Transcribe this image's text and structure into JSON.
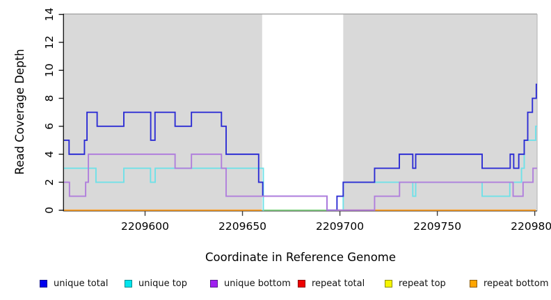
{
  "legend": {
    "items": [
      {
        "label": "unique total",
        "fill": "#0000EE",
        "border": "#00008B"
      },
      {
        "label": "unique top",
        "fill": "#00E5EE",
        "border": "#008B8B"
      },
      {
        "label": "unique bottom",
        "fill": "#A020F0",
        "border": "#551A8B"
      },
      {
        "label": "repeat total",
        "fill": "#EE0000",
        "border": "#8B0000"
      },
      {
        "label": "repeat top",
        "fill": "#F5F500",
        "border": "#8B8B00"
      },
      {
        "label": "repeat bottom",
        "fill": "#FFA500",
        "border": "#8B5A00"
      }
    ]
  },
  "chart_data": {
    "type": "line",
    "step": true,
    "title": "",
    "xlabel": "Coordinate in Reference Genome",
    "ylabel": "Read Coverage Depth",
    "xlim": [
      2209558.4,
      2209801.2
    ],
    "ylim": [
      0,
      14
    ],
    "xticks": [
      {
        "value": 2209600,
        "label": "2209600"
      },
      {
        "value": 2209650,
        "label": "2209650"
      },
      {
        "value": 2209700,
        "label": "2209700"
      },
      {
        "value": 2209750,
        "label": "2209750"
      },
      {
        "value": 2209800,
        "label": "2209800"
      }
    ],
    "yticks": [
      {
        "value": 0,
        "label": "0"
      },
      {
        "value": 2,
        "label": "2"
      },
      {
        "value": 4,
        "label": "4"
      },
      {
        "value": 6,
        "label": "6"
      },
      {
        "value": 8,
        "label": "8"
      },
      {
        "value": 10,
        "label": "10"
      },
      {
        "value": 12,
        "label": "12"
      },
      {
        "value": 14,
        "label": "14"
      }
    ],
    "grid": false,
    "legend_position": "bottom",
    "shading_color": "#d9d9d9",
    "shaded_regions": [
      {
        "from": 2209558.4,
        "to": 2209660.1
      },
      {
        "from": 2209701.7,
        "to": 2209801.0
      }
    ],
    "series": [
      {
        "name": "unique total",
        "color": "#2d2dd4",
        "segments": [
          {
            "steps": [
              [
                2209558.4,
                5
              ],
              [
                2209561.0,
                4
              ],
              [
                2209568.9,
                5
              ],
              [
                2209570.2,
                7
              ],
              [
                2209575.4,
                6
              ],
              [
                2209589.1,
                7
              ],
              [
                2209602.9,
                5
              ],
              [
                2209605.1,
                7
              ],
              [
                2209615.4,
                6
              ],
              [
                2209623.8,
                7
              ],
              [
                2209639.2,
                6
              ],
              [
                2209641.6,
                4
              ],
              [
                2209658.3,
                2
              ],
              [
                2209660.4,
                1
              ],
              [
                2209693.4,
                0
              ],
              [
                2209698.5,
                1
              ],
              [
                2209701.7,
                2
              ],
              [
                2209717.8,
                3
              ],
              [
                2209730.5,
                4
              ],
              [
                2209737.4,
                3
              ],
              [
                2209738.9,
                4
              ],
              [
                2209773.0,
                3
              ],
              [
                2209787.4,
                4
              ],
              [
                2209789.2,
                3
              ],
              [
                2209791.8,
                4
              ],
              [
                2209794.6,
                5
              ],
              [
                2209796.4,
                7
              ],
              [
                2209798.8,
                8
              ],
              [
                2209800.8,
                9
              ]
            ],
            "end": 2209801.2
          }
        ]
      },
      {
        "name": "unique top",
        "color": "#6fe1e8",
        "segments": [
          {
            "steps": [
              [
                2209558.4,
                3
              ],
              [
                2209574.8,
                2
              ],
              [
                2209589.1,
                3
              ],
              [
                2209602.8,
                2
              ],
              [
                2209605.2,
                3
              ],
              [
                2209660.7,
                0
              ]
            ],
            "end": 2209661.0
          },
          {
            "pre": 0,
            "steps": [
              [
                2209701.7,
                2
              ],
              [
                2209737.4,
                1
              ],
              [
                2209738.9,
                2
              ],
              [
                2209773.0,
                1
              ],
              [
                2209787.2,
                2
              ],
              [
                2209793.2,
                3
              ],
              [
                2209794.6,
                5
              ],
              [
                2209800.5,
                6
              ]
            ],
            "end": 2209801.2
          }
        ]
      },
      {
        "name": "unique bottom",
        "color": "#b07edc",
        "segments": [
          {
            "steps": [
              [
                2209558.4,
                2
              ],
              [
                2209561.2,
                1
              ],
              [
                2209569.5,
                2
              ],
              [
                2209570.9,
                4
              ],
              [
                2209615.4,
                3
              ],
              [
                2209623.8,
                4
              ],
              [
                2209639.2,
                3
              ],
              [
                2209641.6,
                1
              ],
              [
                2209693.4,
                0
              ],
              [
                2209717.8,
                1
              ],
              [
                2209730.6,
                2
              ],
              [
                2209788.9,
                1
              ],
              [
                2209794.0,
                2
              ],
              [
                2209799.1,
                3
              ]
            ],
            "end": 2209801.2
          }
        ]
      },
      {
        "name": "repeat total",
        "color": "#d14b66",
        "segments": [
          {
            "steps": [
              [
                2209698.5,
                0
              ]
            ],
            "end": 2209717.8
          }
        ]
      },
      {
        "name": "repeat top",
        "color": "#82d382",
        "segments": [
          {
            "steps": [
              [
                2209660.2,
                0
              ]
            ],
            "end": 2209701.7
          }
        ]
      },
      {
        "name": "repeat bottom",
        "color": "#ff9d1e",
        "segments": [
          {
            "steps": [
              [
                2209558.4,
                0
              ]
            ],
            "end": 2209659.9
          },
          {
            "steps": [
              [
                2209717.8,
                0
              ]
            ],
            "end": 2209800.5
          }
        ]
      }
    ]
  }
}
